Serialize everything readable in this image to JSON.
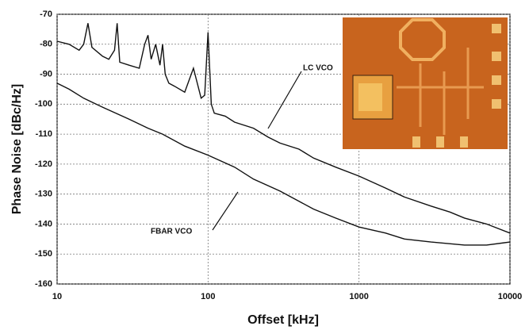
{
  "chart_data": {
    "type": "line",
    "xlabel": "Offset [kHz]",
    "ylabel": "Phase Noise [dBc/Hz]",
    "xscale": "log",
    "grid": true,
    "xlim": [
      10,
      10000
    ],
    "xticks": [
      10,
      100,
      1000,
      10000
    ],
    "ylim": [
      -160,
      -70
    ],
    "yticks": [
      -160,
      -150,
      -140,
      -130,
      -120,
      -110,
      -100,
      -90,
      -80,
      -70
    ],
    "annotations": [
      "LC VCO",
      "FBAR VCO"
    ],
    "series": [
      {
        "name": "LC VCO",
        "color": "#111111",
        "x": [
          10,
          12,
          14,
          15,
          16,
          17,
          20,
          22,
          24,
          25,
          26,
          30,
          35,
          38,
          40,
          42,
          45,
          48,
          50,
          52,
          55,
          60,
          70,
          80,
          90,
          95,
          100,
          105,
          110,
          130,
          150,
          200,
          250,
          300,
          400,
          500,
          700,
          1000,
          1500,
          2000,
          3000,
          4000,
          5000,
          7000,
          10000
        ],
        "values": [
          -79,
          -80,
          -82,
          -80,
          -73,
          -81,
          -84,
          -85,
          -82,
          -73,
          -86,
          -87,
          -88,
          -80,
          -77,
          -85,
          -80,
          -87,
          -80,
          -90,
          -93,
          -94,
          -96,
          -88,
          -98,
          -97,
          -76,
          -100,
          -103,
          -104,
          -106,
          -108,
          -111,
          -113,
          -115,
          -118,
          -121,
          -124,
          -128,
          -131,
          -134,
          -136,
          -138,
          -140,
          -143
        ]
      },
      {
        "name": "FBAR VCO",
        "color": "#111111",
        "x": [
          10,
          12,
          15,
          20,
          30,
          40,
          50,
          70,
          100,
          150,
          200,
          300,
          500,
          700,
          1000,
          1500,
          2000,
          3000,
          5000,
          7000,
          10000
        ],
        "values": [
          -93,
          -95,
          -98,
          -101,
          -105,
          -108,
          -110,
          -114,
          -117,
          -121,
          -125,
          -129,
          -135,
          -138,
          -141,
          -143,
          -145,
          -146,
          -147,
          -147,
          -146
        ]
      }
    ]
  }
}
